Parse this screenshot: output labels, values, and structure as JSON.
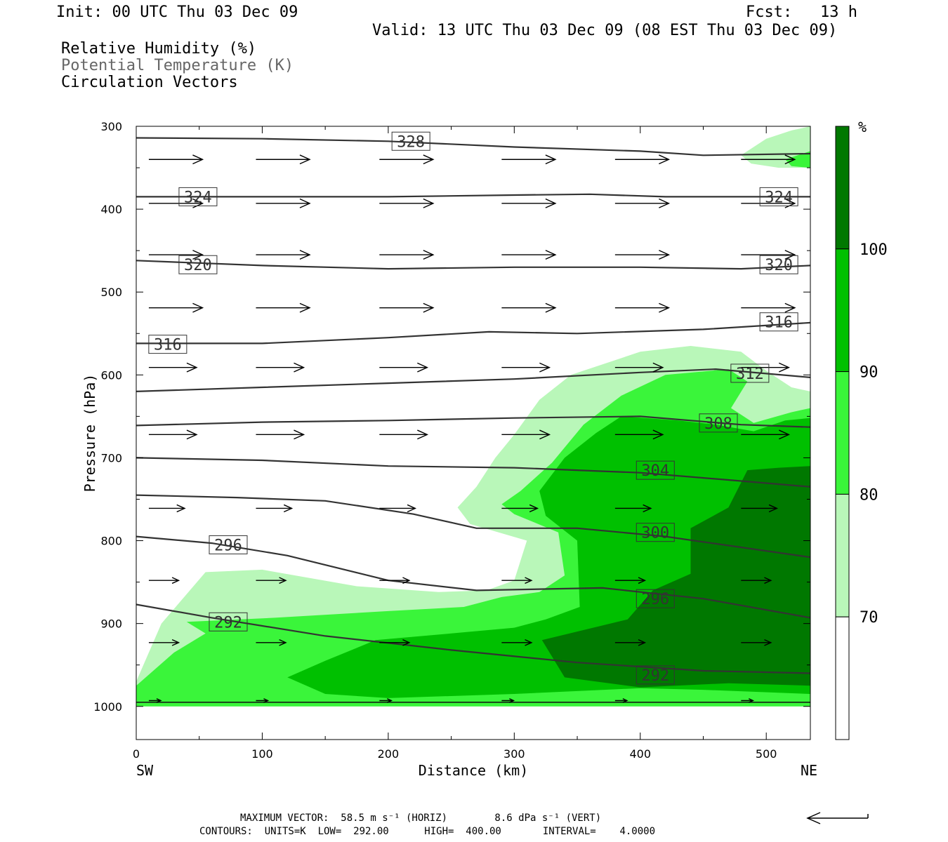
{
  "header": {
    "init": "Init: 00 UTC Thu 03 Dec 09",
    "fcst": "Fcst:   13 h",
    "valid": "Valid: 13 UTC Thu 03 Dec 09 (08 EST Thu 03 Dec 09)",
    "fields": [
      "Relative Humidity (%)",
      "Potential Temperature (K)",
      "Circulation Vectors"
    ]
  },
  "colorbar": {
    "unit": "%",
    "labels": [
      "70",
      "80",
      "90",
      "100"
    ],
    "colors": [
      "#ffffff",
      "#b9f7b9",
      "#3af53a",
      "#00c000",
      "#007800"
    ]
  },
  "footer": {
    "max_vector": "MAXIMUM VECTOR:  58.5 m s⁻¹ (HORIZ)        8.6 dPa s⁻¹ (VERT)",
    "contours": "CONTOURS:  UNITS=K  LOW=  292.00      HIGH=  400.00       INTERVAL=    4.0000"
  },
  "chart_data": {
    "type": "cross-section",
    "xlabel": "Distance (km)",
    "ylabel": "Pressure (hPa)",
    "x_ticks": [
      0,
      100,
      200,
      300,
      400,
      500
    ],
    "y_ticks": [
      300,
      400,
      500,
      600,
      700,
      800,
      900,
      1000
    ],
    "xlim": [
      0,
      535
    ],
    "ylim": [
      1040,
      300
    ],
    "x_end_labels": [
      "SW",
      "NE"
    ],
    "theta_contours": [
      {
        "value": 292,
        "points": [
          [
            0,
            877
          ],
          [
            60,
            893
          ],
          [
            150,
            915
          ],
          [
            250,
            932
          ],
          [
            350,
            947
          ],
          [
            450,
            957
          ],
          [
            535,
            960
          ]
        ]
      },
      {
        "value": 296,
        "points": [
          [
            0,
            795
          ],
          [
            60,
            803
          ],
          [
            120,
            818
          ],
          [
            200,
            848
          ],
          [
            270,
            860
          ],
          [
            370,
            857
          ],
          [
            450,
            870
          ],
          [
            535,
            893
          ]
        ]
      },
      {
        "value": 300,
        "points": [
          [
            0,
            745
          ],
          [
            80,
            748
          ],
          [
            150,
            752
          ],
          [
            220,
            768
          ],
          [
            270,
            785
          ],
          [
            350,
            785
          ],
          [
            420,
            795
          ],
          [
            535,
            820
          ]
        ]
      },
      {
        "value": 304,
        "points": [
          [
            0,
            700
          ],
          [
            100,
            703
          ],
          [
            200,
            710
          ],
          [
            300,
            712
          ],
          [
            400,
            718
          ],
          [
            480,
            728
          ],
          [
            535,
            735
          ]
        ]
      },
      {
        "value": 308,
        "points": [
          [
            0,
            661
          ],
          [
            100,
            657
          ],
          [
            200,
            655
          ],
          [
            300,
            652
          ],
          [
            400,
            650
          ],
          [
            480,
            660
          ],
          [
            535,
            663
          ]
        ]
      },
      {
        "value": 312,
        "points": [
          [
            0,
            620
          ],
          [
            100,
            615
          ],
          [
            200,
            610
          ],
          [
            300,
            605
          ],
          [
            400,
            597
          ],
          [
            460,
            593
          ],
          [
            535,
            603
          ]
        ]
      },
      {
        "value": 316,
        "points": [
          [
            0,
            562
          ],
          [
            100,
            562
          ],
          [
            200,
            555
          ],
          [
            280,
            548
          ],
          [
            350,
            550
          ],
          [
            450,
            545
          ],
          [
            535,
            537
          ]
        ]
      },
      {
        "value": 320,
        "points": [
          [
            0,
            462
          ],
          [
            100,
            468
          ],
          [
            200,
            472
          ],
          [
            300,
            470
          ],
          [
            400,
            470
          ],
          [
            480,
            472
          ],
          [
            535,
            468
          ]
        ]
      },
      {
        "value": 324,
        "points": [
          [
            0,
            385
          ],
          [
            100,
            385
          ],
          [
            200,
            385
          ],
          [
            300,
            383
          ],
          [
            360,
            382
          ],
          [
            420,
            385
          ],
          [
            535,
            385
          ]
        ]
      },
      {
        "value": 328,
        "points": [
          [
            0,
            314
          ],
          [
            100,
            315
          ],
          [
            200,
            318
          ],
          [
            300,
            325
          ],
          [
            400,
            330
          ],
          [
            450,
            335
          ],
          [
            535,
            333
          ]
        ]
      }
    ],
    "contour_labels": [
      {
        "value": 328,
        "x": 218,
        "p": 318
      },
      {
        "value": 324,
        "x": 49,
        "p": 385
      },
      {
        "value": 324,
        "x": 510,
        "p": 385
      },
      {
        "value": 320,
        "x": 49,
        "p": 467
      },
      {
        "value": 320,
        "x": 510,
        "p": 467
      },
      {
        "value": 316,
        "x": 25,
        "p": 563
      },
      {
        "value": 316,
        "x": 510,
        "p": 536
      },
      {
        "value": 312,
        "x": 487,
        "p": 598
      },
      {
        "value": 308,
        "x": 462,
        "p": 658
      },
      {
        "value": 304,
        "x": 412,
        "p": 715
      },
      {
        "value": 300,
        "x": 412,
        "p": 790
      },
      {
        "value": 296,
        "x": 73,
        "p": 805
      },
      {
        "value": 296,
        "x": 412,
        "p": 870
      },
      {
        "value": 292,
        "x": 73,
        "p": 898
      },
      {
        "value": 292,
        "x": 412,
        "p": 962
      }
    ],
    "rh_regions": [
      {
        "rh": 70,
        "points": [
          [
            0,
            970
          ],
          [
            20,
            900
          ],
          [
            55,
            838
          ],
          [
            100,
            835
          ],
          [
            175,
            855
          ],
          [
            240,
            862
          ],
          [
            278,
            860
          ],
          [
            300,
            848
          ],
          [
            310,
            800
          ],
          [
            265,
            780
          ],
          [
            255,
            760
          ],
          [
            270,
            735
          ],
          [
            285,
            700
          ],
          [
            300,
            672
          ],
          [
            320,
            630
          ],
          [
            345,
            600
          ],
          [
            400,
            572
          ],
          [
            440,
            565
          ],
          [
            480,
            572
          ],
          [
            500,
            595
          ],
          [
            520,
            615
          ],
          [
            535,
            620
          ],
          [
            535,
            1000
          ],
          [
            0,
            1000
          ]
        ]
      },
      {
        "rh": 70,
        "points": [
          [
            480,
            335
          ],
          [
            500,
            315
          ],
          [
            520,
            305
          ],
          [
            535,
            300
          ],
          [
            535,
            350
          ],
          [
            510,
            350
          ],
          [
            488,
            345
          ]
        ]
      },
      {
        "rh": 80,
        "points": [
          [
            0,
            975
          ],
          [
            30,
            935
          ],
          [
            55,
            912
          ],
          [
            40,
            898
          ],
          [
            110,
            893
          ],
          [
            200,
            885
          ],
          [
            260,
            880
          ],
          [
            290,
            868
          ],
          [
            320,
            862
          ],
          [
            340,
            842
          ],
          [
            335,
            790
          ],
          [
            300,
            768
          ],
          [
            290,
            756
          ],
          [
            305,
            740
          ],
          [
            330,
            706
          ],
          [
            355,
            660
          ],
          [
            385,
            625
          ],
          [
            420,
            600
          ],
          [
            470,
            593
          ],
          [
            485,
            608
          ],
          [
            472,
            640
          ],
          [
            490,
            658
          ],
          [
            520,
            645
          ],
          [
            535,
            640
          ],
          [
            535,
            1000
          ],
          [
            0,
            1000
          ]
        ]
      },
      {
        "rh": 80,
        "points": [
          [
            515,
            340
          ],
          [
            535,
            330
          ],
          [
            535,
            350
          ],
          [
            520,
            348
          ]
        ]
      },
      {
        "rh": 90,
        "points": [
          [
            150,
            945
          ],
          [
            190,
            920
          ],
          [
            250,
            912
          ],
          [
            300,
            905
          ],
          [
            325,
            895
          ],
          [
            352,
            880
          ],
          [
            350,
            800
          ],
          [
            325,
            770
          ],
          [
            320,
            740
          ],
          [
            340,
            700
          ],
          [
            365,
            670
          ],
          [
            385,
            650
          ],
          [
            430,
            655
          ],
          [
            460,
            660
          ],
          [
            490,
            668
          ],
          [
            515,
            655
          ],
          [
            535,
            652
          ],
          [
            535,
            985
          ],
          [
            450,
            980
          ],
          [
            400,
            978
          ],
          [
            300,
            985
          ],
          [
            200,
            990
          ],
          [
            150,
            985
          ],
          [
            120,
            965
          ]
        ]
      },
      {
        "rh": 100,
        "points": [
          [
            322,
            920
          ],
          [
            390,
            895
          ],
          [
            410,
            860
          ],
          [
            440,
            840
          ],
          [
            440,
            785
          ],
          [
            470,
            760
          ],
          [
            485,
            715
          ],
          [
            510,
            712
          ],
          [
            535,
            710
          ],
          [
            535,
            975
          ],
          [
            470,
            972
          ],
          [
            400,
            977
          ],
          [
            340,
            965
          ]
        ]
      }
    ],
    "vectors": [
      {
        "p": 340,
        "x": [
          10,
          95,
          193,
          290,
          380,
          480
        ],
        "u": 45,
        "w": 0
      },
      {
        "p": 393,
        "x": [
          10,
          95,
          193,
          290,
          380,
          480
        ],
        "u": 45,
        "w": 0
      },
      {
        "p": 455,
        "x": [
          10,
          95,
          193,
          290,
          380,
          480
        ],
        "u": 45,
        "w": 0
      },
      {
        "p": 519,
        "x": [
          10,
          95,
          193,
          290,
          380,
          480
        ],
        "u": 45,
        "w": 0
      },
      {
        "p": 591,
        "x": [
          10,
          95,
          193,
          290,
          380,
          480
        ],
        "u": 40,
        "w": 0
      },
      {
        "p": 672,
        "x": [
          10,
          95,
          193,
          290,
          380,
          480
        ],
        "u": 40,
        "w": 0
      },
      {
        "p": 761,
        "x": [
          10,
          95,
          193,
          290,
          380,
          480
        ],
        "u": 30,
        "w": 0
      },
      {
        "p": 848,
        "x": [
          10,
          95,
          193,
          290,
          380,
          480
        ],
        "u": 25,
        "w": 0
      },
      {
        "p": 923,
        "x": [
          10,
          95,
          193,
          290,
          380,
          480
        ],
        "u": 25,
        "w": 0
      },
      {
        "p": 993,
        "x": [
          10,
          95,
          193,
          290,
          380,
          480
        ],
        "u": 10,
        "w": 0
      }
    ]
  }
}
